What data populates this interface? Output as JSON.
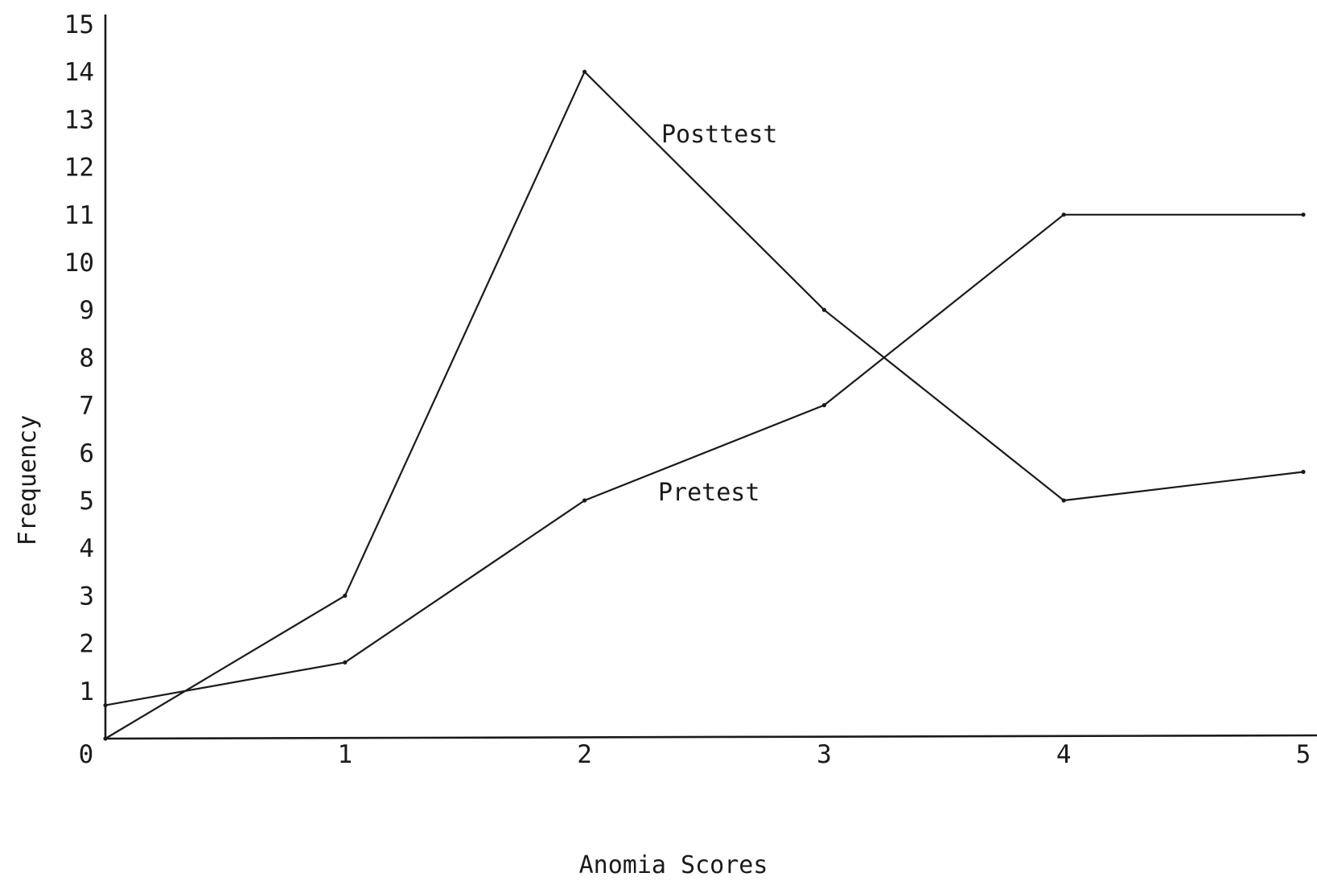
{
  "chart_data": {
    "type": "line",
    "title": "",
    "xlabel": "Anomia Scores",
    "ylabel": "Frequency",
    "x": [
      0,
      1,
      2,
      3,
      4,
      5
    ],
    "xlim": [
      0,
      5
    ],
    "ylim": [
      0,
      15
    ],
    "x_ticks": [
      "0",
      "1",
      "2",
      "3",
      "4",
      "5"
    ],
    "y_ticks": [
      "1",
      "2",
      "3",
      "4",
      "5",
      "6",
      "7",
      "8",
      "9",
      "10",
      "11",
      "12",
      "13",
      "14",
      "15"
    ],
    "grid": false,
    "legend": "inline labels",
    "series": [
      {
        "name": "Posttest",
        "values": [
          0,
          3,
          14,
          9,
          5,
          5.6
        ]
      },
      {
        "name": "Pretest",
        "values": [
          0.7,
          1.6,
          5,
          7,
          11,
          11
        ]
      }
    ],
    "colors": {
      "ink": "#1a1a1a",
      "paper": "#ffffff"
    }
  }
}
